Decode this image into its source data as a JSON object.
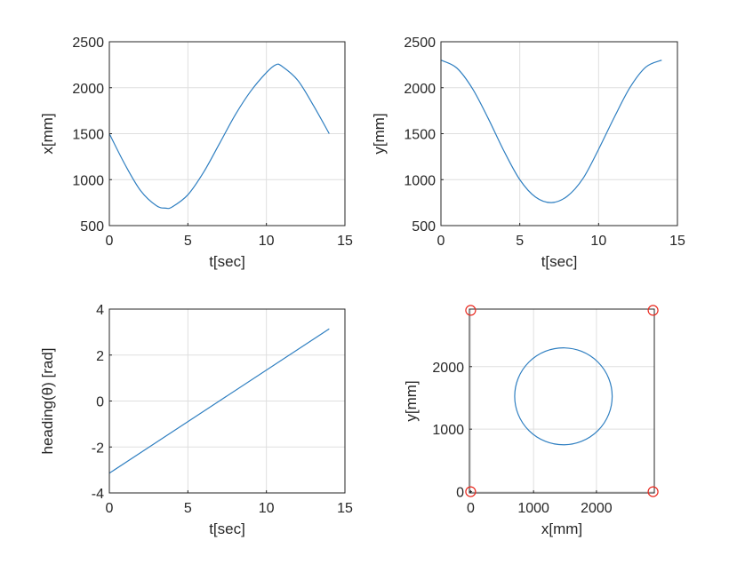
{
  "chart_data": [
    {
      "type": "line",
      "xlabel": "t[sec]",
      "ylabel": "x[mm]",
      "xlim": [
        0,
        15
      ],
      "ylim": [
        500,
        2500
      ],
      "xticks": [
        "0",
        "5",
        "10",
        "15"
      ],
      "yticks": [
        "500",
        "1000",
        "1500",
        "2000",
        "2500"
      ],
      "grid": true,
      "series": [
        {
          "color": "#2f7fc1",
          "x": [
            0,
            1,
            2,
            3,
            3.6,
            4,
            5,
            6,
            7,
            8,
            9,
            10,
            10.6,
            11,
            12,
            13,
            14
          ],
          "y": [
            1500,
            1163,
            878,
            716,
            690,
            703,
            835,
            1080,
            1388,
            1700,
            1962,
            2165,
            2250,
            2232,
            2080,
            1805,
            1500
          ]
        }
      ]
    },
    {
      "type": "line",
      "xlabel": "t[sec]",
      "ylabel": "y[mm]",
      "xlim": [
        0,
        15
      ],
      "ylim": [
        500,
        2500
      ],
      "xticks": [
        "0",
        "5",
        "10",
        "15"
      ],
      "yticks": [
        "500",
        "1000",
        "1500",
        "2000",
        "2500"
      ],
      "grid": true,
      "series": [
        {
          "color": "#2f7fc1",
          "x": [
            0,
            1,
            2,
            3,
            4,
            5,
            6,
            7,
            8,
            9,
            10,
            11,
            12,
            13,
            14
          ],
          "y": [
            2300,
            2215,
            1990,
            1665,
            1310,
            1000,
            810,
            750,
            818,
            1010,
            1330,
            1680,
            2005,
            2225,
            2300
          ]
        }
      ]
    },
    {
      "type": "line",
      "xlabel": "t[sec]",
      "ylabel": "heading(θ) [rad]",
      "xlim": [
        0,
        15
      ],
      "ylim": [
        -4,
        4
      ],
      "xticks": [
        "0",
        "5",
        "10",
        "15"
      ],
      "yticks": [
        "-4",
        "-2",
        "0",
        "2",
        "4"
      ],
      "grid": true,
      "series": [
        {
          "color": "#2f7fc1",
          "x": [
            0,
            14
          ],
          "y": [
            -3.14,
            3.14
          ]
        }
      ]
    },
    {
      "type": "scatter",
      "xlabel": "x[mm]",
      "ylabel": "y[mm]",
      "xlim": [
        -20,
        2920
      ],
      "ylim": [
        -20,
        2920
      ],
      "xticks": [
        "0",
        "1000",
        "2000"
      ],
      "yticks": [
        "0",
        "1000",
        "2000"
      ],
      "grid": true,
      "series": [
        {
          "color": "#2f7fc1",
          "shape": "circle-path",
          "center": [
            1475,
            1525
          ],
          "radius": 775
        },
        {
          "color": "#e8281e",
          "marker": "o",
          "x": [
            0,
            2900,
            0,
            2900
          ],
          "y": [
            0,
            0,
            2900,
            2900
          ]
        }
      ]
    }
  ]
}
